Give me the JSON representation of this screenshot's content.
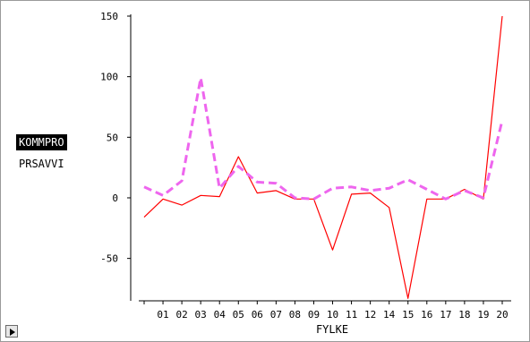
{
  "legend": {
    "items": [
      {
        "label": "KOMMPRO",
        "active": true
      },
      {
        "label": "PRSAVVI",
        "active": false
      }
    ]
  },
  "controls": {
    "play_icon": "play-icon"
  },
  "chart_data": {
    "type": "line",
    "xlabel": "FYLKE",
    "ylabel": "",
    "categories": [
      "",
      "01",
      "02",
      "03",
      "04",
      "05",
      "06",
      "07",
      "08",
      "09",
      "10",
      "11",
      "12",
      "14",
      "15",
      "16",
      "17",
      "18",
      "19",
      "20"
    ],
    "ylim": [
      -85,
      150
    ],
    "yticks": [
      150,
      100,
      50,
      0,
      -50
    ],
    "series": [
      {
        "name": "KOMMPRO",
        "color": "#ff0000",
        "style": "solid",
        "values": [
          -16,
          -1,
          -6,
          2,
          1,
          34,
          4,
          6,
          -1,
          -1,
          -43,
          3,
          4,
          -8,
          -83,
          -1,
          -1,
          7,
          -1,
          150
        ]
      },
      {
        "name": "PRSAVVI",
        "color": "#ee66ee",
        "style": "dashed",
        "values": [
          9,
          2,
          14,
          99,
          8,
          26,
          13,
          12,
          0,
          -1,
          8,
          9,
          6,
          8,
          15,
          7,
          -1,
          6,
          0,
          64
        ]
      }
    ]
  }
}
